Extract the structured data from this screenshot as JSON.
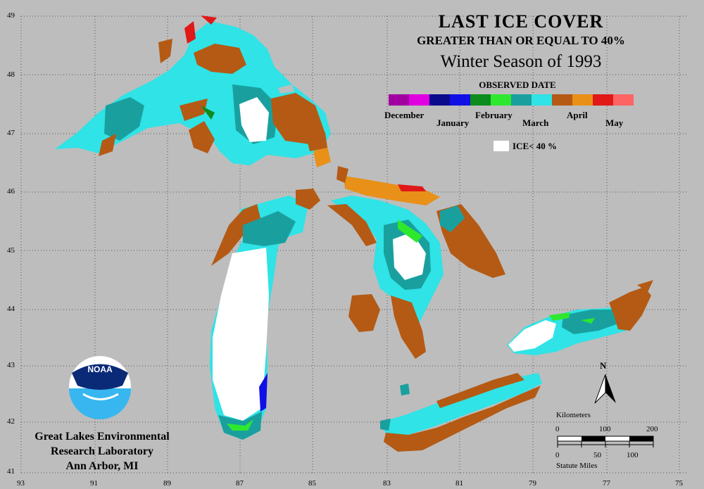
{
  "title": "LAST ICE COVER",
  "subtitle": "GREATER THAN OR EQUAL TO 40%",
  "season": "Winter Season of 1993",
  "legend": {
    "title": "OBSERVED DATE",
    "months": [
      "December",
      "January",
      "February",
      "March",
      "April",
      "May"
    ],
    "colors": [
      "#a000a0",
      "#e000e0",
      "#0a0a8c",
      "#1010e6",
      "#0c8c1c",
      "#2ee82e",
      "#19a09e",
      "#2fe3e6",
      "#b45a14",
      "#e89018",
      "#e01818",
      "#ff6464"
    ],
    "ice_label": "ICE< 40 %"
  },
  "lat_labels": [
    "49",
    "48",
    "47",
    "46",
    "45",
    "44",
    "43",
    "42",
    "41"
  ],
  "lon_labels": [
    "93",
    "91",
    "89",
    "87",
    "85",
    "83",
    "81",
    "79",
    "77",
    "75"
  ],
  "org": {
    "logo_text": "NOAA",
    "line1": "Great Lakes Environmental",
    "line2": "Research Laboratory",
    "line3": "Ann Arbor, MI"
  },
  "scale": {
    "km_title": "Kilometers",
    "km_ticks": [
      "0",
      "100",
      "200"
    ],
    "mi_title": "Statute Miles",
    "mi_ticks": [
      "0",
      "50",
      "100"
    ]
  },
  "north": "N"
}
